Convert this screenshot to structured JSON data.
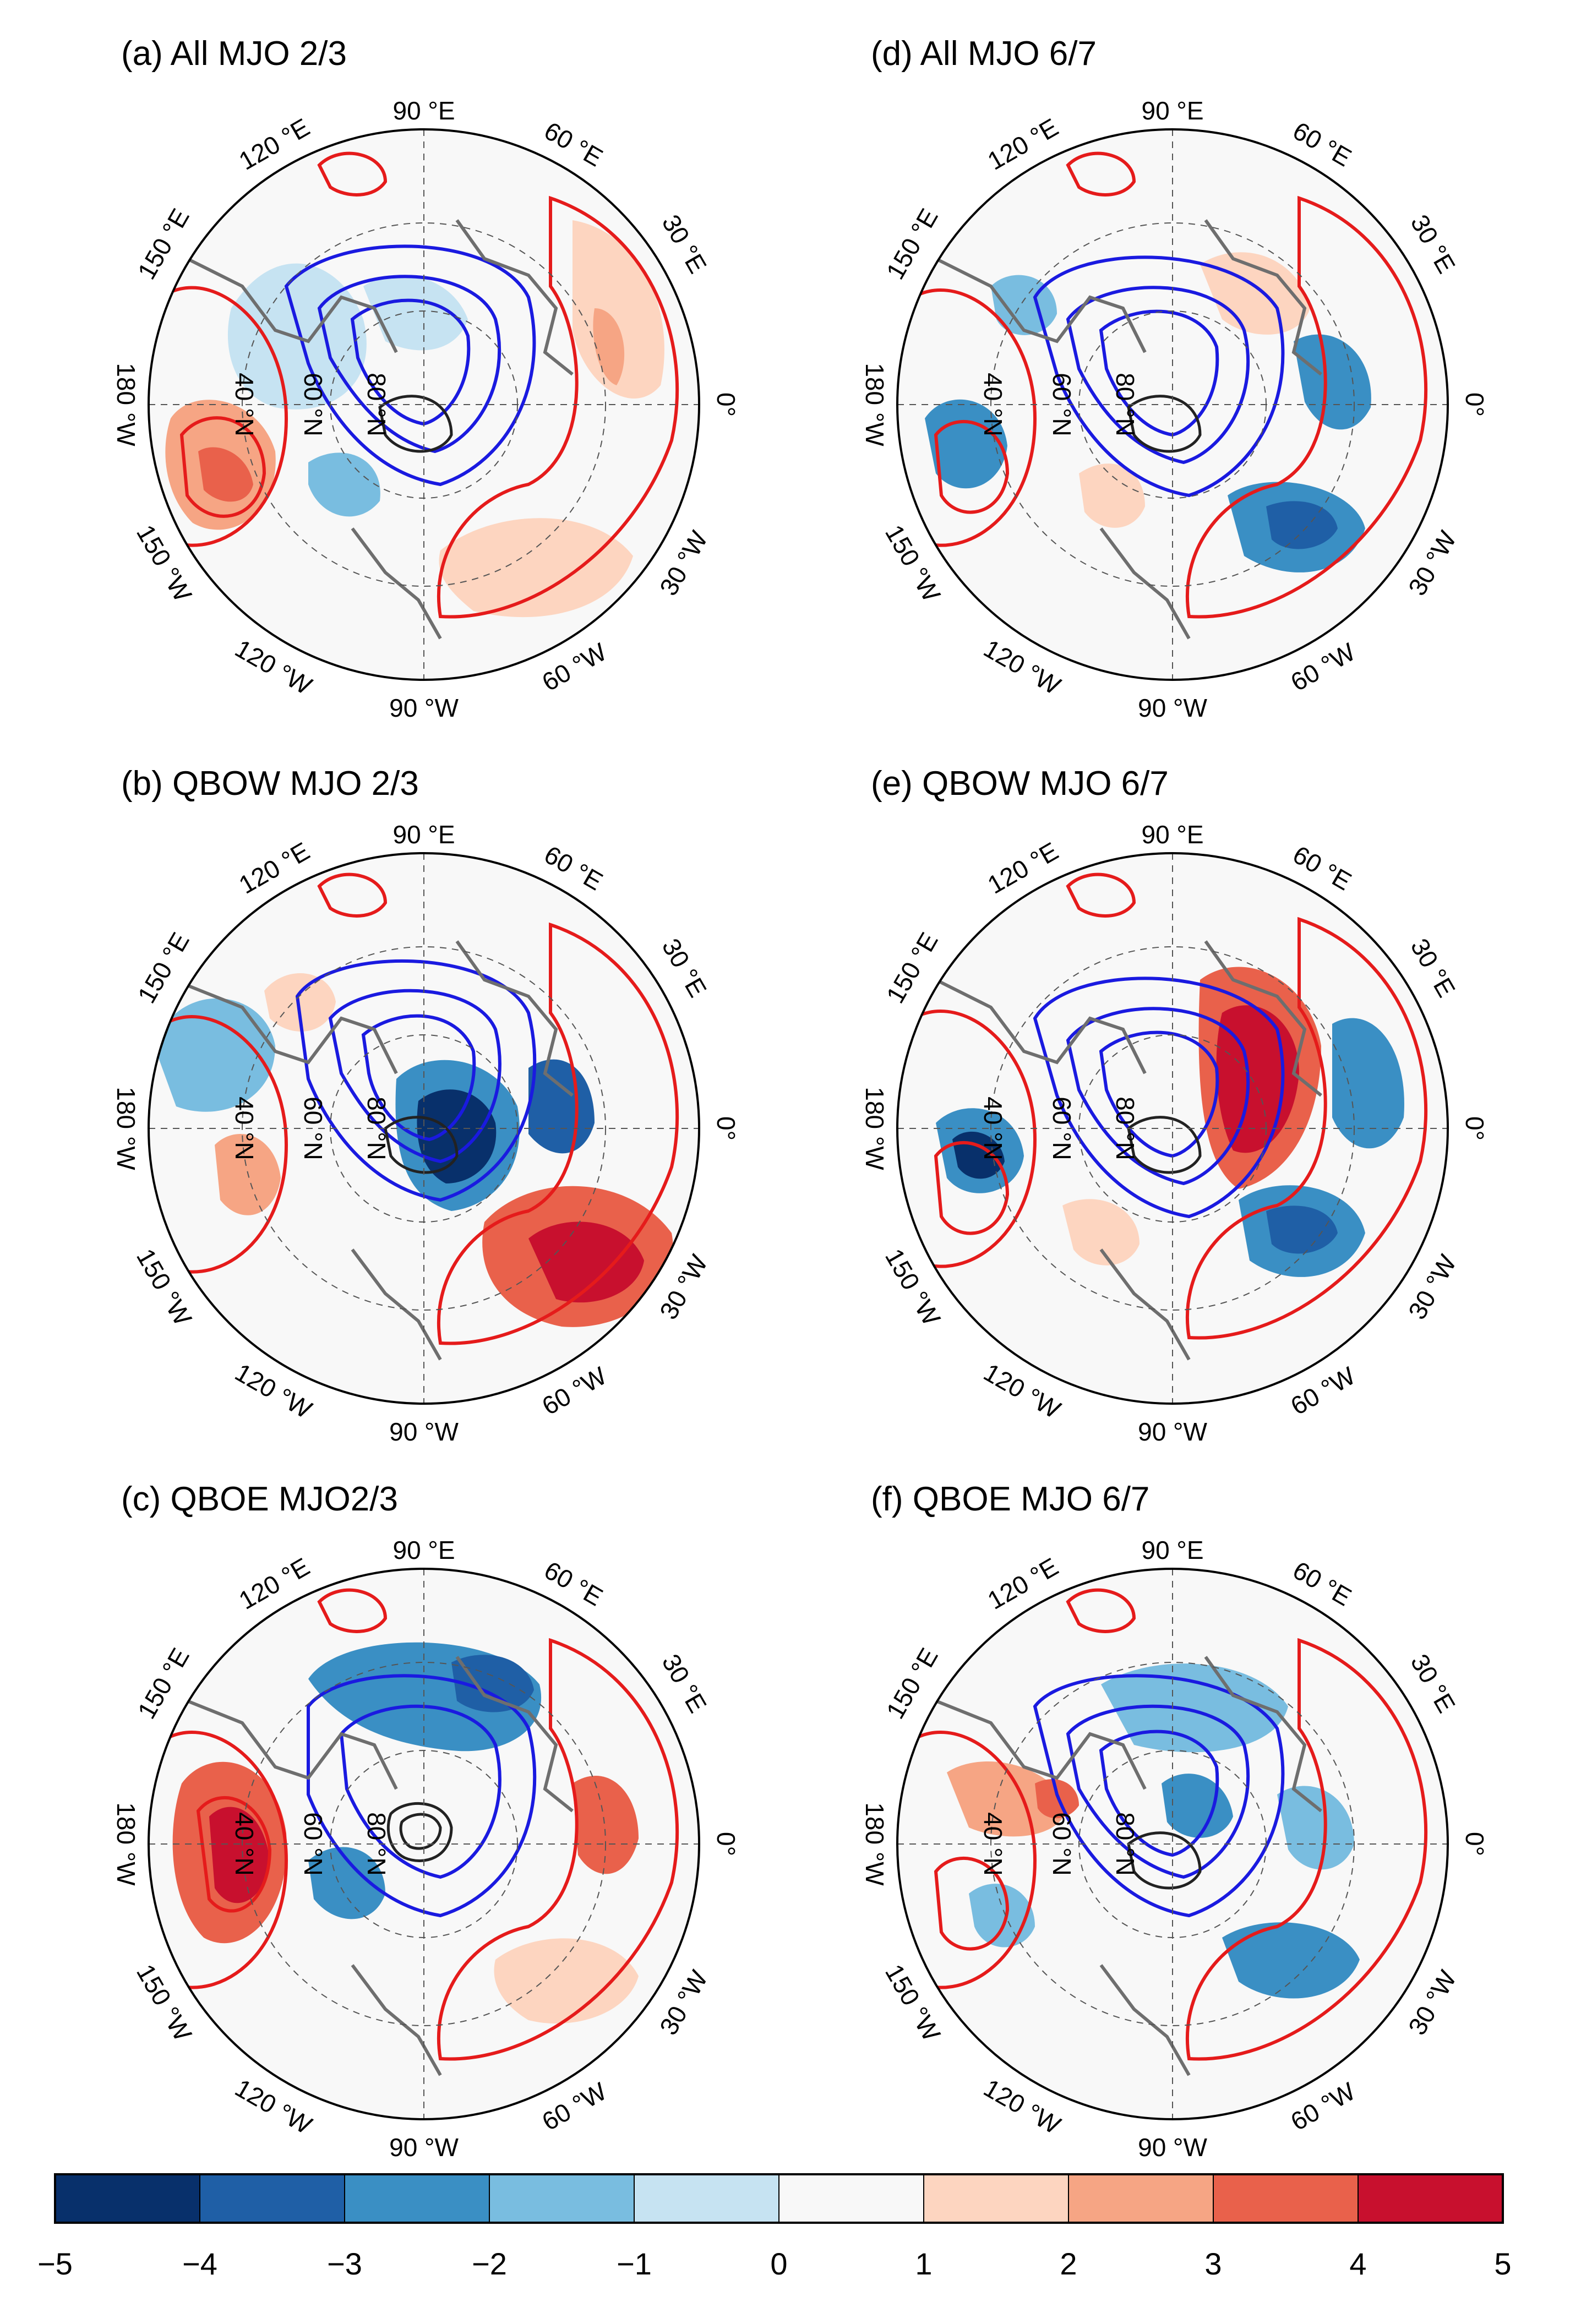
{
  "panels": [
    {
      "id": "a",
      "title": "(a) All MJO 2/3"
    },
    {
      "id": "b",
      "title": "(b) QBOW MJO 2/3"
    },
    {
      "id": "c",
      "title": "(c) QBOE MJO2/3"
    },
    {
      "id": "d",
      "title": "(d) All MJO 6/7"
    },
    {
      "id": "e",
      "title": "(e) QBOW MJO 6/7"
    },
    {
      "id": "f",
      "title": "(f) QBOE MJO 6/7"
    }
  ],
  "longitude_labels": {
    "lon_90E": "90 °E",
    "lon_60E": "60 °E",
    "lon_30E": "30 °E",
    "lon_0": "0°",
    "lon_30W": "30 °W",
    "lon_60W": "60 °W",
    "lon_90W": "90 °W",
    "lon_120W": "120 °W",
    "lon_150W": "150 °W",
    "lon_180W": "180 °W",
    "lon_150E": "150 °E",
    "lon_120E": "120 °E"
  },
  "latitude_labels": {
    "lat_40N": "40 °N",
    "lat_60N": "60 °N",
    "lat_80N": "80 °N"
  },
  "colorbar": {
    "ticks": [
      "−5",
      "−4",
      "−3",
      "−2",
      "−1",
      "0",
      "1",
      "2",
      "3",
      "4",
      "5"
    ],
    "colors": [
      "#08306b",
      "#1f5fa6",
      "#3a8fc4",
      "#79bde0",
      "#c6e3f2",
      "#f8f8f8",
      "#fdd5c0",
      "#f6a584",
      "#e9614b",
      "#c8102e"
    ]
  },
  "colors": {
    "positive_contour": "#e51b1b",
    "negative_contour": "#1a1ae0",
    "coastline": "#6e6e6e"
  }
}
